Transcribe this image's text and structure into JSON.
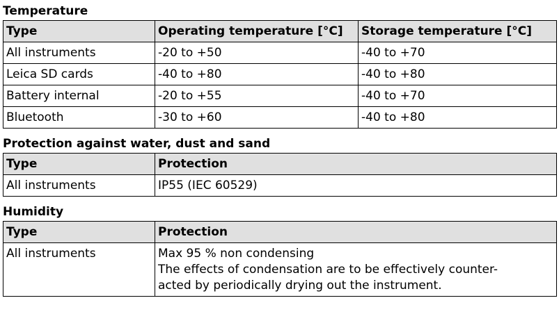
{
  "sections": [
    {
      "title": "Temperature",
      "table": {
        "header": [
          "Type",
          "Operating temperature [°C]",
          "Storage temperature [°C]"
        ],
        "rows": [
          [
            "All instruments",
            "-20 to +50",
            "-40 to +70"
          ],
          [
            "Leica SD cards",
            "-40 to +80",
            "-40 to +80"
          ],
          [
            "Battery internal",
            "-20 to +55",
            "-40 to +70"
          ],
          [
            "Bluetooth",
            "-30 to +60",
            "-40 to +80"
          ]
        ]
      }
    },
    {
      "title": "Protection against water, dust and sand",
      "table": {
        "header": [
          "Type",
          "Protection"
        ],
        "rows": [
          [
            "All instruments",
            "IP55 (IEC 60529)"
          ]
        ]
      }
    },
    {
      "title": "Humidity",
      "table": {
        "header": [
          "Type",
          "Protection"
        ],
        "rows": [
          [
            "All instruments",
            [
              "Max 95 % non condensing",
              "The effects of condensation are to be effectively counter-",
              "acted by periodically drying out the instrument."
            ]
          ]
        ]
      }
    }
  ]
}
